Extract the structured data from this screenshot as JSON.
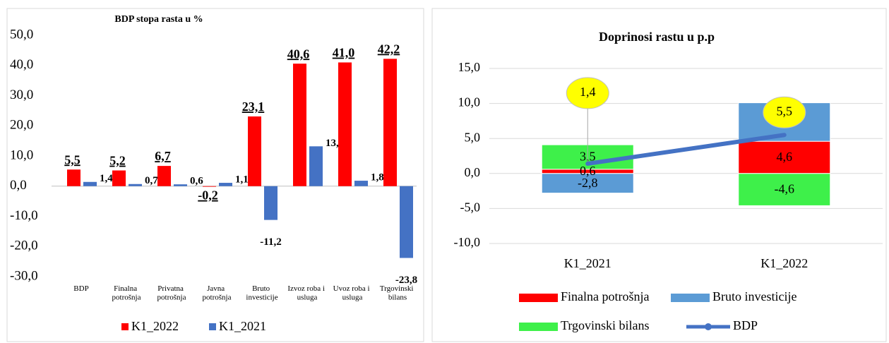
{
  "chart_data": [
    {
      "type": "bar",
      "title": "BDP stopa rasta u %",
      "categories": [
        "BDP",
        "Finalna potrošnja",
        "Privatna potrošnja",
        "Javna potrošnja",
        "Bruto investicije",
        "Izvoz roba i usluga",
        "Uvoz roba i usluga",
        "Trgovinski bilans"
      ],
      "series": [
        {
          "name": "K1_2022",
          "color": "#ff0000",
          "values": [
            5.5,
            5.2,
            6.7,
            -0.2,
            23.1,
            40.6,
            41.0,
            42.2
          ],
          "value_labels": [
            "5,5",
            "5,2",
            "6,7",
            "-0,2",
            "23,1",
            "40,6",
            "41,0",
            "42,2"
          ]
        },
        {
          "name": "K1_2021",
          "color": "#4472c4",
          "values": [
            1.4,
            0.7,
            0.6,
            1.1,
            -11.2,
            13.2,
            1.8,
            -23.8
          ],
          "value_labels": [
            "1,4",
            "0,7",
            "0,6",
            "1,1",
            "-11,2",
            "13,2",
            "1,8",
            "-23,8"
          ]
        }
      ],
      "ylim": [
        -30,
        50
      ],
      "yticks": [
        {
          "value": -30,
          "label": "-30,0"
        },
        {
          "value": -20,
          "label": "-20,0"
        },
        {
          "value": -10,
          "label": "-10,0"
        },
        {
          "value": 0,
          "label": "0,0"
        },
        {
          "value": 10,
          "label": "10,0"
        },
        {
          "value": 20,
          "label": "20,0"
        },
        {
          "value": 30,
          "label": "30,0"
        },
        {
          "value": 40,
          "label": "40,0"
        },
        {
          "value": 50,
          "label": "50,0"
        }
      ],
      "grid": false
    },
    {
      "type": "bar",
      "stacked": true,
      "title": "Doprinosi rastu u p.p",
      "categories": [
        "K1_2021",
        "K1_2022"
      ],
      "series": [
        {
          "name": "Finalna potrošnja",
          "color": "#ff0000",
          "values": [
            0.6,
            4.6
          ],
          "value_labels": [
            "0,6",
            "4,6"
          ]
        },
        {
          "name": "Bruto investicije",
          "color": "#5b9bd5",
          "values": [
            -2.8,
            5.5
          ],
          "value_labels": [
            "-2,8",
            "5,5"
          ]
        },
        {
          "name": "Trgovinski bilans",
          "color": "#3ef04a",
          "values": [
            3.5,
            -4.6
          ],
          "value_labels": [
            "3,5",
            "-4,6"
          ]
        },
        {
          "name": "BDP",
          "type": "line",
          "color": "#4472c4",
          "values": [
            1.4,
            5.5
          ],
          "value_labels": [
            "1,4",
            "5,5"
          ]
        }
      ],
      "ylim": [
        -10,
        15
      ],
      "yticks": [
        {
          "value": -10,
          "label": "-10,0"
        },
        {
          "value": -5,
          "label": "-5,0"
        },
        {
          "value": 0,
          "label": "0,0"
        },
        {
          "value": 5,
          "label": "5,0"
        },
        {
          "value": 10,
          "label": "10,0"
        },
        {
          "value": 15,
          "label": "15,0"
        }
      ],
      "grid": true
    }
  ]
}
